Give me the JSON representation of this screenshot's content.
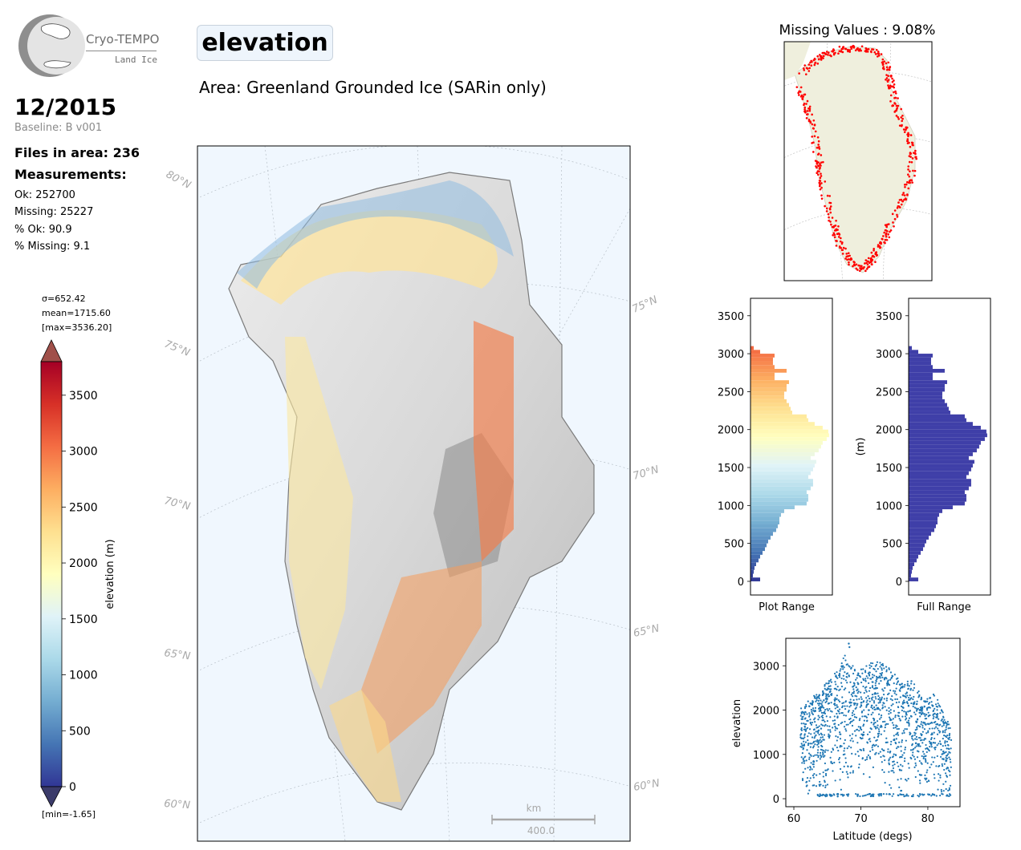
{
  "logo": {
    "title": "Cryo-TEMPO",
    "subtitle": "Land Ice"
  },
  "header": {
    "title": "elevation",
    "area": "Area: Greenland Grounded Ice (SARin only)"
  },
  "info": {
    "date": "12/2015",
    "baseline": "Baseline: B v001",
    "files": "Files in area: 236",
    "measurements_label": "Measurements:",
    "ok": "Ok: 252700",
    "missing": "Missing: 25227",
    "pct_ok": "% Ok: 90.9",
    "pct_missing": "% Missing: 9.1"
  },
  "colorbar": {
    "sigma": "σ=652.42",
    "mean": "mean=1715.60",
    "max": "[max=3536.20]",
    "min": "[min=-1.65]",
    "label": "elevation (m)",
    "ticks": [
      0,
      500,
      1000,
      1500,
      2000,
      2500,
      3000,
      3500
    ],
    "range": [
      0,
      3800
    ],
    "colormap": [
      "#313695",
      "#4575b4",
      "#74add1",
      "#abd9e9",
      "#e0f3f8",
      "#ffffbf",
      "#fee090",
      "#fdae61",
      "#f46d43",
      "#d73027",
      "#a50026"
    ]
  },
  "map": {
    "lat_labels": [
      "80°N",
      "75°N",
      "70°N",
      "65°N",
      "60°N"
    ],
    "lat_labels_right": [
      "75°N",
      "70°N",
      "65°N",
      "60°N"
    ],
    "scalebar_unit": "km",
    "scalebar_value": "400.0"
  },
  "missing_map": {
    "title": "Missing Values : 9.08%"
  },
  "chart_data": [
    {
      "type": "bar",
      "orientation": "horizontal",
      "xlabel": "Plot Range",
      "ylabel": "",
      "ylim": [
        -180,
        3730
      ],
      "yticks": [
        0,
        500,
        1000,
        1500,
        2000,
        2500,
        3000,
        3500
      ],
      "bin_width": 50,
      "bins": [
        25,
        75,
        125,
        175,
        225,
        275,
        325,
        375,
        425,
        475,
        525,
        575,
        625,
        675,
        725,
        775,
        825,
        875,
        925,
        975,
        1025,
        1075,
        1125,
        1175,
        1225,
        1275,
        1325,
        1375,
        1425,
        1475,
        1525,
        1575,
        1625,
        1675,
        1725,
        1775,
        1825,
        1875,
        1925,
        1975,
        2025,
        2075,
        2125,
        2175,
        2225,
        2275,
        2325,
        2375,
        2425,
        2475,
        2525,
        2575,
        2625,
        2675,
        2725,
        2775,
        2825,
        2875,
        2925,
        2975,
        3025,
        3075
      ],
      "values": [
        12,
        3,
        4,
        5,
        7,
        10,
        12,
        15,
        18,
        20,
        22,
        25,
        28,
        32,
        34,
        36,
        36,
        38,
        42,
        55,
        70,
        72,
        72,
        70,
        75,
        78,
        78,
        72,
        75,
        78,
        80,
        82,
        75,
        80,
        85,
        88,
        90,
        95,
        98,
        97,
        90,
        80,
        72,
        70,
        52,
        50,
        48,
        45,
        42,
        42,
        45,
        45,
        48,
        30,
        30,
        45,
        30,
        28,
        28,
        30,
        12,
        4
      ]
    },
    {
      "type": "bar",
      "orientation": "horizontal",
      "xlabel": "Full Range",
      "ylabel": "(m)",
      "ylim": [
        -180,
        3730
      ],
      "yticks": [
        0,
        500,
        1000,
        1500,
        2000,
        2500,
        3000,
        3500
      ],
      "bin_width": 50,
      "bins": [
        25,
        75,
        125,
        175,
        225,
        275,
        325,
        375,
        425,
        475,
        525,
        575,
        625,
        675,
        725,
        775,
        825,
        875,
        925,
        975,
        1025,
        1075,
        1125,
        1175,
        1225,
        1275,
        1325,
        1375,
        1425,
        1475,
        1525,
        1575,
        1625,
        1675,
        1725,
        1775,
        1825,
        1875,
        1925,
        1975,
        2025,
        2075,
        2125,
        2175,
        2225,
        2275,
        2325,
        2375,
        2425,
        2475,
        2525,
        2575,
        2625,
        2675,
        2725,
        2775,
        2825,
        2875,
        2925,
        2975,
        3025,
        3075
      ],
      "values": [
        12,
        3,
        4,
        5,
        7,
        10,
        12,
        15,
        18,
        20,
        22,
        25,
        28,
        32,
        34,
        36,
        36,
        38,
        42,
        55,
        70,
        72,
        72,
        70,
        75,
        78,
        78,
        72,
        75,
        78,
        80,
        82,
        75,
        80,
        85,
        88,
        90,
        95,
        98,
        97,
        90,
        80,
        72,
        70,
        52,
        50,
        48,
        45,
        42,
        42,
        45,
        45,
        48,
        30,
        30,
        45,
        30,
        28,
        28,
        30,
        12,
        4
      ],
      "color": "#3f3fa8"
    },
    {
      "type": "scatter",
      "xlabel": "Latitude (degs)",
      "ylabel": "elevation",
      "xlim": [
        58.8,
        84.8
      ],
      "ylim": [
        -180,
        3620
      ],
      "xticks": [
        60,
        70,
        80
      ],
      "yticks": [
        0,
        1000,
        2000,
        3000
      ],
      "color": "#1f77b4",
      "envelope": {
        "lat": [
          61.0,
          62.0,
          63.5,
          65.0,
          66.0,
          67.0,
          67.5,
          68.2,
          69.5,
          71.0,
          72.0,
          73.5,
          74.5,
          76.0,
          77.5,
          78.5,
          79.5,
          81.0,
          82.0,
          83.5
        ],
        "upper": [
          2050,
          2200,
          2400,
          2650,
          2900,
          3000,
          3250,
          3150,
          2900,
          3050,
          3100,
          3050,
          2950,
          2600,
          2700,
          2500,
          2200,
          2400,
          2050,
          1600
        ],
        "lower": [
          300,
          50,
          100,
          250,
          300,
          150,
          100,
          200,
          500,
          300,
          600,
          300,
          200,
          100,
          300,
          200,
          100,
          200,
          150,
          100
        ]
      },
      "outliers": [
        [
          68.2,
          3500
        ],
        [
          68.3,
          3420
        ]
      ]
    }
  ]
}
